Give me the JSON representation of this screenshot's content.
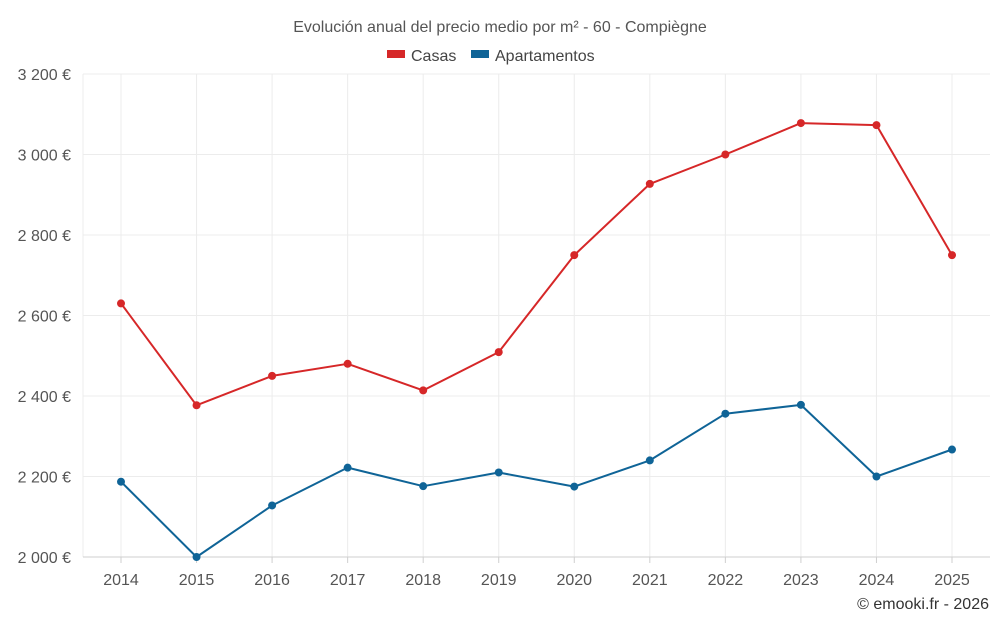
{
  "chart_data": {
    "type": "line",
    "title": "Evolución anual del precio medio por m² - 60 - Compiègne",
    "xlabel": "",
    "ylabel": "",
    "categories": [
      "2014",
      "2015",
      "2016",
      "2017",
      "2018",
      "2019",
      "2020",
      "2021",
      "2022",
      "2023",
      "2024",
      "2025"
    ],
    "ylim": [
      2000,
      3200
    ],
    "yticks": [
      2000,
      2200,
      2400,
      2600,
      2800,
      3000,
      3200
    ],
    "ytick_labels": [
      "2 000 €",
      "2 200 €",
      "2 400 €",
      "2 600 €",
      "2 800 €",
      "3 000 €",
      "3 200 €"
    ],
    "grid": true,
    "legend_position": "top-center",
    "series": [
      {
        "name": "Casas",
        "color": "#d62728",
        "values": [
          2630,
          2377,
          2450,
          2480,
          2414,
          2509,
          2750,
          2927,
          3000,
          3078,
          3073,
          2750
        ]
      },
      {
        "name": "Apartamentos",
        "color": "#0f6497",
        "values": [
          2187,
          2000,
          2128,
          2222,
          2176,
          2210,
          2175,
          2240,
          2356,
          2378,
          2200,
          2267
        ]
      }
    ]
  },
  "credit": "© emooki.fr - 2026"
}
